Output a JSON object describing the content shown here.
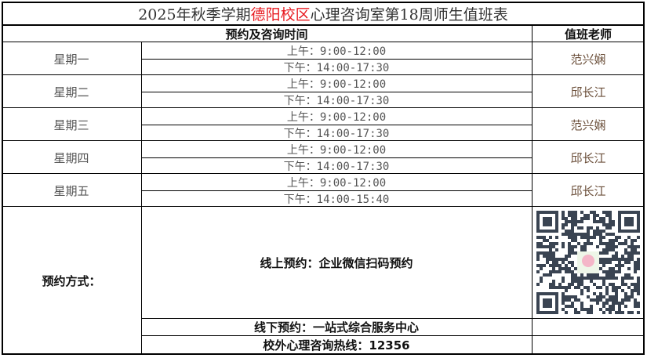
{
  "title": {
    "prefix": "2025年秋季学期",
    "campus": "德阳校区",
    "suffix": "心理咨询室第18周师生值班表",
    "campus_color": "#e8191f"
  },
  "header": {
    "time": "预约及咨询时间",
    "teacher": "值班老师"
  },
  "schedule": [
    {
      "day": "星期一",
      "am": "上午：9:00-12:00",
      "pm": "下午：14:00-17:30",
      "teacher": "范兴娴"
    },
    {
      "day": "星期二",
      "am": "上午：9:00-12:00",
      "pm": "下午：14:00-17:30",
      "teacher": "邱长江"
    },
    {
      "day": "星期三",
      "am": "上午：9:00-12:00",
      "pm": "下午：14:00-17:30",
      "teacher": "范兴娴"
    },
    {
      "day": "星期四",
      "am": "上午：9:00-12:00",
      "pm": "下午：14:00-17:30",
      "teacher": "邱长江"
    },
    {
      "day": "星期五",
      "am": "上午：9:00-12:00",
      "pm": "下午：14:00-15:40",
      "teacher": "邱长江"
    }
  ],
  "booking": {
    "label": "预约方式：",
    "online": "线上预约：企业微信扫码预约",
    "offline": "线下预约：一站式综合服务中心",
    "hotline": "校外心理咨询热线：12356",
    "qr_icon": "qr-code"
  }
}
